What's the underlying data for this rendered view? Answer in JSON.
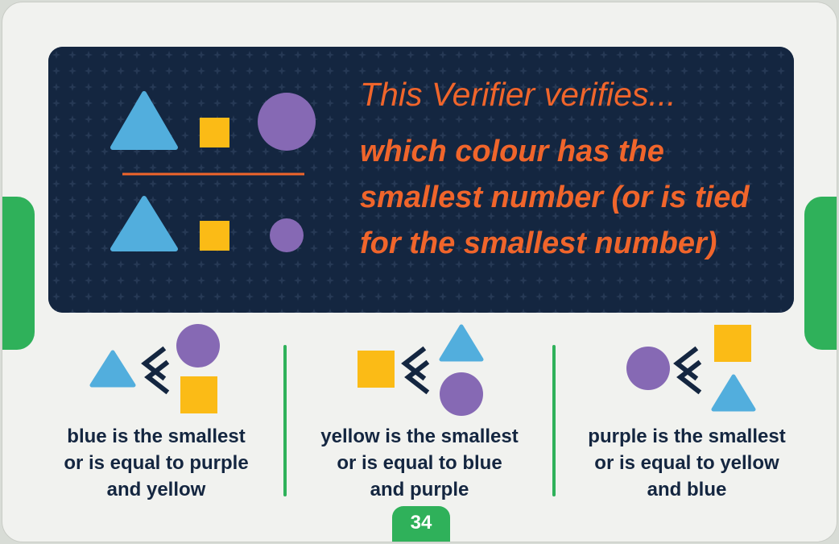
{
  "panel": {
    "title": "This Verifier verifies...",
    "description": "which colour has the smallest number (or is tied for the smallest number)"
  },
  "criteria": [
    {
      "text": "blue is the smallest\nor is equal to purple\nand yellow"
    },
    {
      "text": "yellow is the smallest\nor is equal to blue\nand purple"
    },
    {
      "text": "purple is the smallest\nor is equal to yellow\nand blue"
    }
  ],
  "page_number": "34",
  "colors": {
    "panel_bg": "#142640",
    "accent_orange": "#f0652b",
    "blue": "#52aedd",
    "yellow": "#fbbb16",
    "purple": "#8669b4",
    "green": "#2fb15a"
  },
  "icons": [
    "triangle-icon",
    "square-icon",
    "circle-icon",
    "less-than-icon"
  ]
}
